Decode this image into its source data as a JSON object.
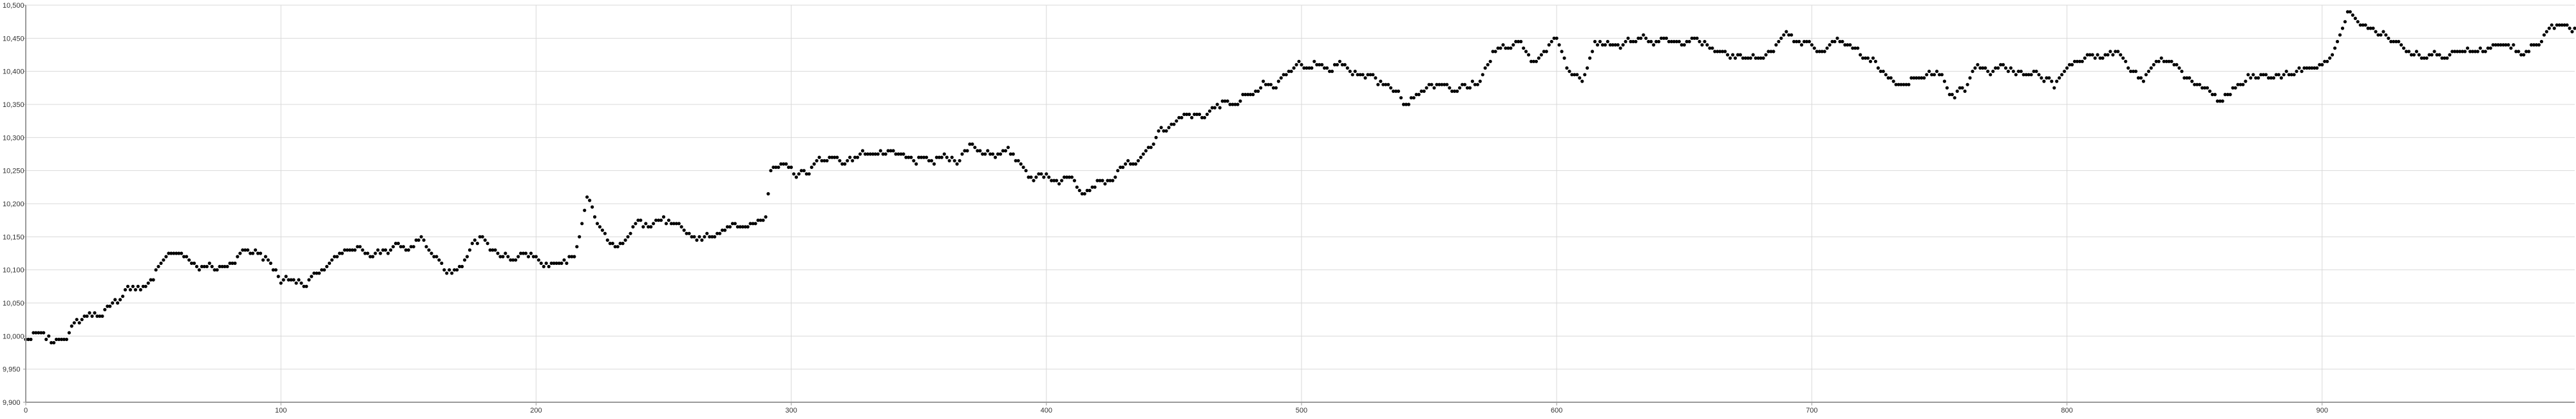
{
  "chart_data": {
    "type": "scatter",
    "xlabel": "",
    "ylabel": "",
    "xlim": [
      0,
      999
    ],
    "ylim": [
      9900,
      10500
    ],
    "grid": true,
    "legend": "none",
    "colors": {
      "point": "#000000",
      "grid": "#d9d9d9",
      "axis": "#9a9a9a"
    },
    "x_ticks": [
      0,
      100,
      200,
      300,
      400,
      500,
      600,
      700,
      800,
      900
    ],
    "x_tick_labels": [
      "0",
      "100",
      "200",
      "300",
      "400",
      "500",
      "600",
      "700",
      "800",
      "900"
    ],
    "y_ticks": [
      9900,
      9950,
      10000,
      10050,
      10100,
      10150,
      10200,
      10250,
      10300,
      10350,
      10400,
      10450,
      10500
    ],
    "y_tick_labels": [
      "9,900",
      "9,950",
      "10,000",
      "10,050",
      "10,100",
      "10,150",
      "10,200",
      "10,250",
      "10,300",
      "10,350",
      "10,400",
      "10,450",
      "10,500"
    ],
    "x_step": 1,
    "y_anchors": [
      [
        0,
        9995
      ],
      [
        5,
        10000
      ],
      [
        10,
        9990
      ],
      [
        15,
        10000
      ],
      [
        20,
        10020
      ],
      [
        25,
        10035
      ],
      [
        30,
        10035
      ],
      [
        35,
        10045
      ],
      [
        40,
        10075
      ],
      [
        45,
        10070
      ],
      [
        50,
        10090
      ],
      [
        55,
        10120
      ],
      [
        60,
        10130
      ],
      [
        65,
        10115
      ],
      [
        70,
        10105
      ],
      [
        75,
        10100
      ],
      [
        80,
        10110
      ],
      [
        85,
        10130
      ],
      [
        90,
        10130
      ],
      [
        95,
        10115
      ],
      [
        100,
        10085
      ],
      [
        105,
        10090
      ],
      [
        110,
        10075
      ],
      [
        115,
        10095
      ],
      [
        120,
        10110
      ],
      [
        125,
        10125
      ],
      [
        130,
        10130
      ],
      [
        135,
        10125
      ],
      [
        140,
        10130
      ],
      [
        145,
        10135
      ],
      [
        150,
        10130
      ],
      [
        155,
        10150
      ],
      [
        160,
        10120
      ],
      [
        165,
        10095
      ],
      [
        170,
        10100
      ],
      [
        175,
        10135
      ],
      [
        180,
        10150
      ],
      [
        185,
        10125
      ],
      [
        190,
        10120
      ],
      [
        195,
        10130
      ],
      [
        200,
        10120
      ],
      [
        205,
        10110
      ],
      [
        210,
        10120
      ],
      [
        215,
        10125
      ],
      [
        220,
        10210
      ],
      [
        225,
        10165
      ],
      [
        230,
        10135
      ],
      [
        235,
        10150
      ],
      [
        240,
        10170
      ],
      [
        245,
        10165
      ],
      [
        250,
        10170
      ],
      [
        255,
        10160
      ],
      [
        260,
        10150
      ],
      [
        265,
        10150
      ],
      [
        270,
        10155
      ],
      [
        275,
        10170
      ],
      [
        280,
        10160
      ],
      [
        285,
        10170
      ],
      [
        290,
        10190
      ],
      [
        292,
        10255
      ],
      [
        295,
        10255
      ],
      [
        300,
        10245
      ],
      [
        305,
        10245
      ],
      [
        310,
        10260
      ],
      [
        315,
        10270
      ],
      [
        320,
        10265
      ],
      [
        325,
        10270
      ],
      [
        330,
        10280
      ],
      [
        335,
        10275
      ],
      [
        340,
        10270
      ],
      [
        345,
        10265
      ],
      [
        350,
        10265
      ],
      [
        355,
        10260
      ],
      [
        360,
        10270
      ],
      [
        365,
        10265
      ],
      [
        370,
        10290
      ],
      [
        375,
        10280
      ],
      [
        380,
        10280
      ],
      [
        385,
        10275
      ],
      [
        390,
        10260
      ],
      [
        395,
        10240
      ],
      [
        400,
        10245
      ],
      [
        405,
        10235
      ],
      [
        410,
        10240
      ],
      [
        415,
        10225
      ],
      [
        420,
        10240
      ],
      [
        425,
        10235
      ],
      [
        430,
        10260
      ],
      [
        435,
        10255
      ],
      [
        440,
        10280
      ],
      [
        445,
        10310
      ],
      [
        450,
        10320
      ],
      [
        455,
        10330
      ],
      [
        460,
        10335
      ],
      [
        465,
        10340
      ],
      [
        470,
        10350
      ],
      [
        475,
        10355
      ],
      [
        480,
        10370
      ],
      [
        485,
        10390
      ],
      [
        490,
        10380
      ],
      [
        495,
        10395
      ],
      [
        500,
        10410
      ],
      [
        505,
        10415
      ],
      [
        510,
        10400
      ],
      [
        515,
        10410
      ],
      [
        520,
        10400
      ],
      [
        525,
        10395
      ],
      [
        530,
        10385
      ],
      [
        535,
        10380
      ],
      [
        540,
        10355
      ],
      [
        545,
        10365
      ],
      [
        550,
        10380
      ],
      [
        555,
        10385
      ],
      [
        560,
        10375
      ],
      [
        565,
        10375
      ],
      [
        570,
        10385
      ],
      [
        575,
        10430
      ],
      [
        580,
        10435
      ],
      [
        585,
        10440
      ],
      [
        590,
        10420
      ],
      [
        595,
        10430
      ],
      [
        600,
        10450
      ],
      [
        605,
        10400
      ],
      [
        610,
        10390
      ],
      [
        615,
        10450
      ],
      [
        620,
        10450
      ],
      [
        625,
        10440
      ],
      [
        630,
        10445
      ],
      [
        635,
        10450
      ],
      [
        640,
        10450
      ],
      [
        645,
        10445
      ],
      [
        650,
        10450
      ],
      [
        655,
        10450
      ],
      [
        660,
        10440
      ],
      [
        665,
        10430
      ],
      [
        670,
        10430
      ],
      [
        675,
        10420
      ],
      [
        680,
        10420
      ],
      [
        685,
        10430
      ],
      [
        690,
        10460
      ],
      [
        695,
        10440
      ],
      [
        700,
        10440
      ],
      [
        705,
        10430
      ],
      [
        710,
        10440
      ],
      [
        715,
        10435
      ],
      [
        720,
        10420
      ],
      [
        725,
        10410
      ],
      [
        730,
        10395
      ],
      [
        735,
        10380
      ],
      [
        740,
        10390
      ],
      [
        745,
        10400
      ],
      [
        750,
        10395
      ],
      [
        755,
        10370
      ],
      [
        760,
        10375
      ],
      [
        765,
        10410
      ],
      [
        770,
        10400
      ],
      [
        775,
        10400
      ],
      [
        780,
        10400
      ],
      [
        785,
        10390
      ],
      [
        790,
        10395
      ],
      [
        795,
        10380
      ],
      [
        800,
        10405
      ],
      [
        805,
        10420
      ],
      [
        810,
        10430
      ],
      [
        815,
        10430
      ],
      [
        820,
        10430
      ],
      [
        825,
        10400
      ],
      [
        830,
        10385
      ],
      [
        835,
        10410
      ],
      [
        840,
        10415
      ],
      [
        845,
        10400
      ],
      [
        850,
        10385
      ],
      [
        855,
        10365
      ],
      [
        860,
        10355
      ],
      [
        865,
        10370
      ],
      [
        870,
        10385
      ],
      [
        875,
        10390
      ],
      [
        880,
        10390
      ],
      [
        885,
        10395
      ],
      [
        890,
        10400
      ],
      [
        895,
        10405
      ],
      [
        900,
        10410
      ],
      [
        905,
        10430
      ],
      [
        910,
        10490
      ],
      [
        915,
        10475
      ],
      [
        920,
        10460
      ],
      [
        925,
        10455
      ],
      [
        930,
        10440
      ],
      [
        935,
        10435
      ],
      [
        940,
        10430
      ],
      [
        945,
        10430
      ],
      [
        950,
        10430
      ],
      [
        955,
        10430
      ],
      [
        960,
        10425
      ],
      [
        965,
        10430
      ],
      [
        970,
        10435
      ],
      [
        975,
        10430
      ],
      [
        980,
        10425
      ],
      [
        985,
        10440
      ],
      [
        990,
        10465
      ],
      [
        995,
        10470
      ],
      [
        999,
        10460
      ]
    ]
  }
}
